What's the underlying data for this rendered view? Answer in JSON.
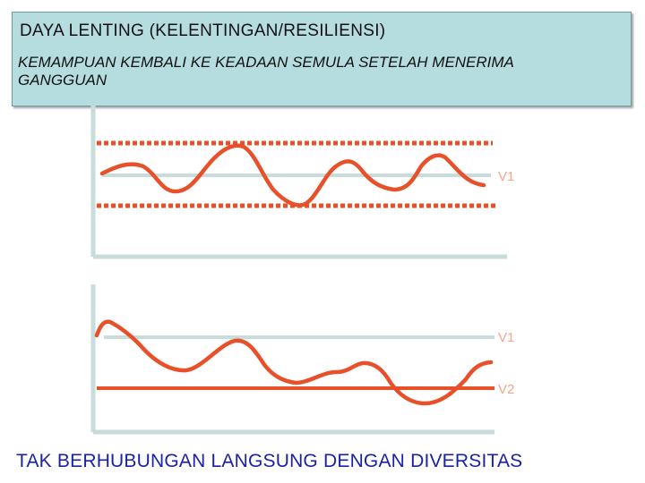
{
  "header": {
    "title": "DAYA LENTING (KELENTINGAN/RESILIENSI)",
    "subtitle": "KEMAMPUAN KEMBALI KE KEADAAN SEMULA SETELAH MENERIMA GANGGUAN"
  },
  "panel_top": {
    "line_label": "V1"
  },
  "panel_bottom": {
    "line_label_1": "V1",
    "line_label_2": "V2"
  },
  "footer": {
    "text": "TAK BERHUBUNGAN LANGSUNG DENGAN DIVERSITAS"
  },
  "colors": {
    "box_fill": "#b5dde0",
    "curve": "#e8502a",
    "reference_line": "#c9dcdc",
    "label": "#f7a48a",
    "footer_text": "#1a22a8"
  }
}
